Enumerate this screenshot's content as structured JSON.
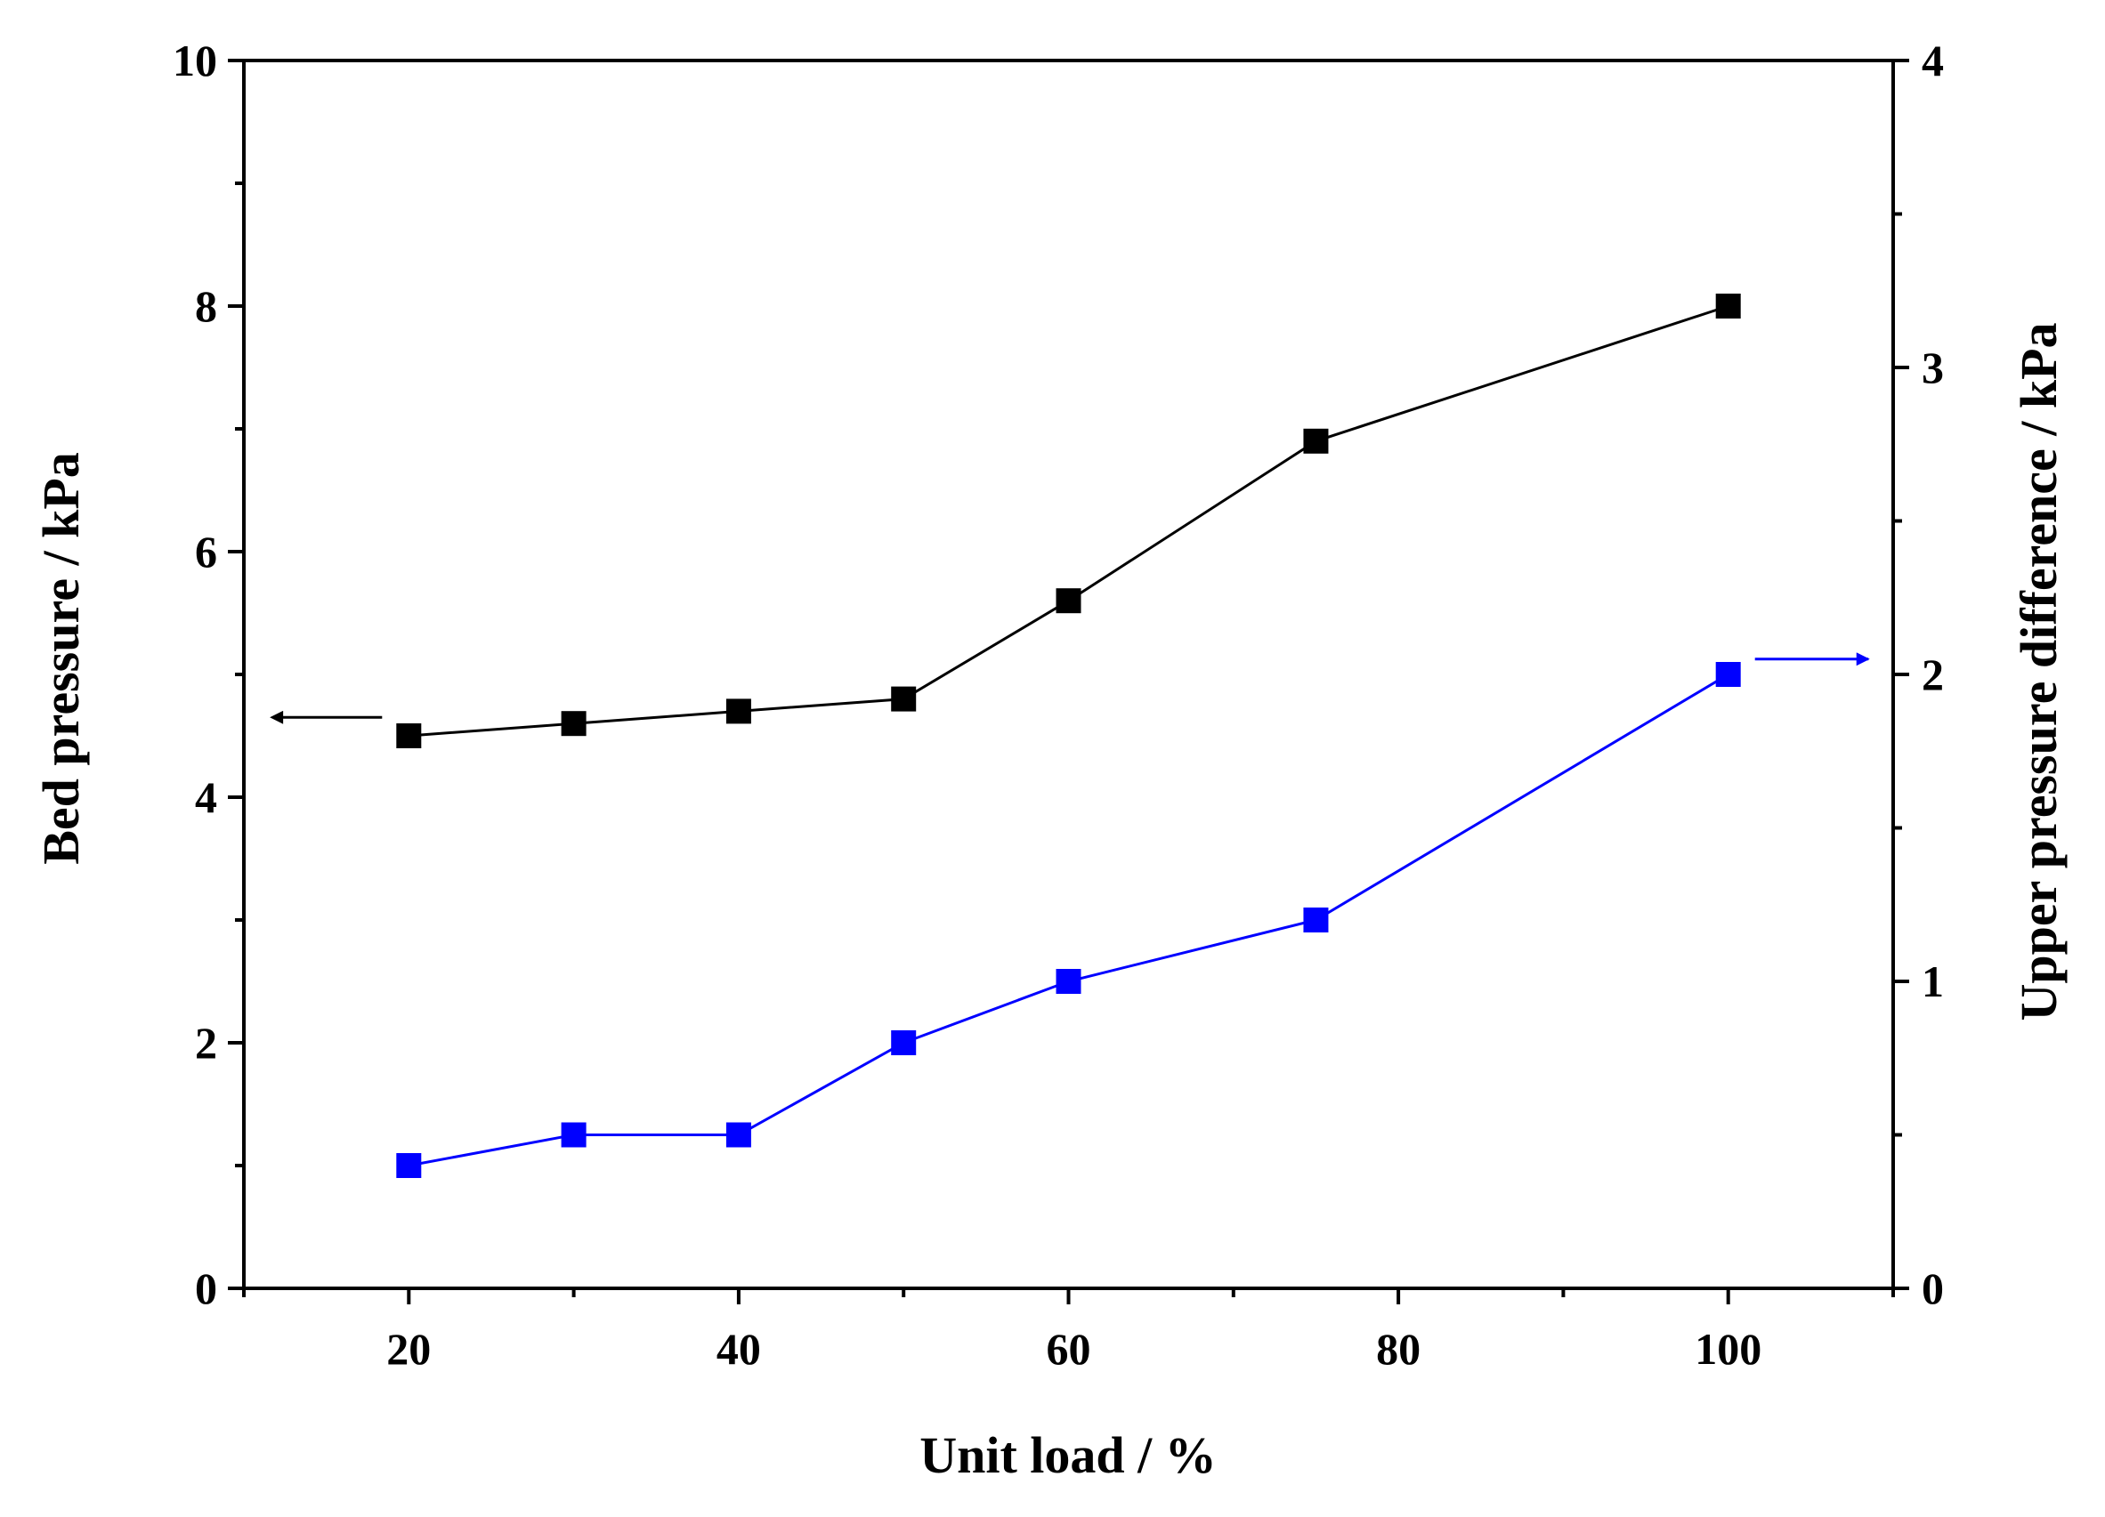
{
  "chart_data": {
    "type": "line",
    "title": "",
    "xlabel": "Unit load / %",
    "ylabel": "Bed pressure / kPa",
    "y2label": "Upper pressure difference / kPa",
    "xlim": [
      10,
      110
    ],
    "ylim": [
      0,
      10
    ],
    "y2lim": [
      0,
      4
    ],
    "x_ticks": [
      20,
      40,
      60,
      80,
      100
    ],
    "y_ticks": [
      0,
      2,
      4,
      6,
      8,
      10
    ],
    "y2_ticks": [
      0,
      1,
      2,
      3,
      4
    ],
    "x_tick_labels": [
      "20",
      "40",
      "60",
      "80",
      "100"
    ],
    "y_tick_labels": [
      "0",
      "2",
      "4",
      "6",
      "8",
      "10"
    ],
    "y2_tick_labels": [
      "0",
      "1",
      "2",
      "3",
      "4"
    ],
    "grid": false,
    "series": [
      {
        "name": "Bed pressure",
        "axis": "left",
        "color": "#000000",
        "marker": "square",
        "x": [
          20,
          30,
          40,
          50,
          60,
          75,
          100
        ],
        "values": [
          4.5,
          4.6,
          4.7,
          4.8,
          5.6,
          6.9,
          8.0
        ]
      },
      {
        "name": "Upper pressure difference",
        "axis": "right",
        "color": "#0000ff",
        "marker": "square",
        "x": [
          20,
          30,
          40,
          50,
          60,
          75,
          100
        ],
        "values": [
          0.4,
          0.5,
          0.5,
          0.8,
          1.0,
          1.2,
          2.0
        ]
      }
    ],
    "annotations": [
      {
        "name": "left-axis-arrow",
        "series": "Bed pressure",
        "direction": "left",
        "color": "#000000"
      },
      {
        "name": "right-axis-arrow",
        "series": "Upper pressure difference",
        "direction": "right",
        "color": "#0000ff"
      }
    ]
  }
}
